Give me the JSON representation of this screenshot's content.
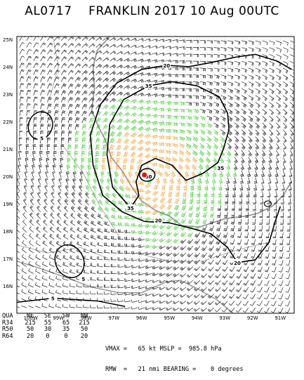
{
  "title": "AL0717    FRANKLIN 2017 10 Aug 00UTC",
  "map": {
    "lat_labels": [
      "25N",
      "24N",
      "23N",
      "22N",
      "21N",
      "20N",
      "19N",
      "18N",
      "17N",
      "16N"
    ],
    "lon_labels": [
      "100W",
      "99W",
      "98W",
      "97W",
      "96W",
      "95W",
      "94W",
      "93W",
      "92W",
      "91W"
    ],
    "contour_labels": [
      {
        "text": "20",
        "lat": 24.05,
        "lon": -95.1
      },
      {
        "text": "35",
        "lat": 23.3,
        "lon": -95.75
      },
      {
        "text": "5",
        "lat": 21.4,
        "lon": -99.6
      },
      {
        "text": "50",
        "lat": 20.0,
        "lon": -95.75
      },
      {
        "text": "35",
        "lat": 20.3,
        "lon": -93.15
      },
      {
        "text": "35",
        "lat": 18.85,
        "lon": -96.4
      },
      {
        "text": "20",
        "lat": 18.4,
        "lon": -95.4
      },
      {
        "text": "20",
        "lat": 16.85,
        "lon": -92.55
      },
      {
        "text": "5",
        "lat": 16.25,
        "lon": -98.1
      },
      {
        "text": "5",
        "lat": 15.55,
        "lon": -99.2
      }
    ],
    "colors": {
      "barb_black": "#000000",
      "barb_green": "#39c428",
      "barb_orange": "#f0a030",
      "center": "#e01010",
      "coast": "#9a9a9a",
      "grid": "#9a9a9a"
    }
  },
  "table": {
    "headers": [
      "QUA",
      "NE",
      "SE",
      "SW",
      "NW"
    ],
    "rows": [
      [
        "R34",
        "215",
        "55",
        "65",
        "215"
      ],
      [
        "R50",
        "50",
        "30",
        "35",
        "50"
      ],
      [
        "R64",
        "20",
        "0",
        "0",
        "20"
      ]
    ]
  },
  "stats": {
    "line1": "VMAX =   65 kt MSLP =  985.8 hPa",
    "line2": "RMW  =   21 nmi BEARING =    0 degrees"
  }
}
